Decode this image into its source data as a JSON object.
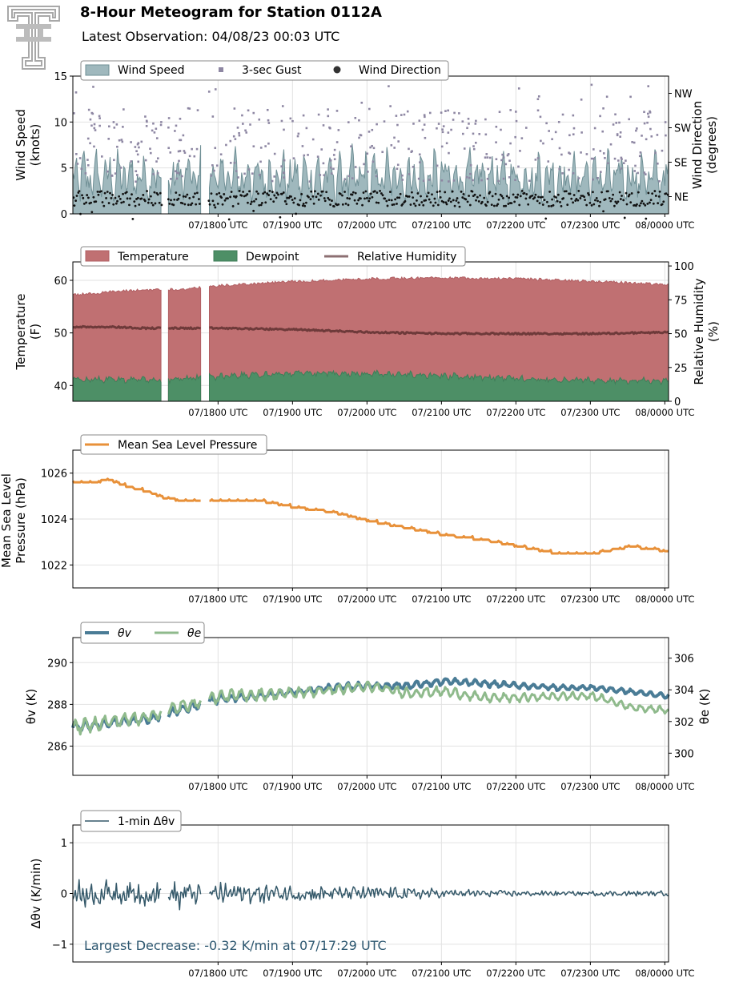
{
  "header": {
    "title": "8-Hour Meteogram for Station 0112A",
    "subtitle": "Latest Observation: 04/08/23 00:03 UTC"
  },
  "colors": {
    "wind_speed": "#9fb8bd",
    "wind_speed_edge": "#6f8f95",
    "gust": "#8e87a3",
    "wind_dir": "#111111",
    "temperature": "#c07072",
    "dewpoint": "#4d8f66",
    "rh": "#6e3a3a",
    "rh_legend": "#8c6f72",
    "mslp": "#e8913a",
    "theta_v": "#4a7c96",
    "theta_e": "#8fba8c",
    "dtheta": "#35596a",
    "annotation": "#2d5770",
    "logo": "#a8a8a8"
  },
  "chart_data": [
    {
      "type": "area",
      "id": "wind",
      "ylabel": "Wind Speed\n(knots)",
      "ylabel2": "Wind Direction\n(degrees)",
      "ylim": [
        0,
        15
      ],
      "yticks": [
        0,
        5,
        10,
        15
      ],
      "y2ticks": [
        "NE",
        "SE",
        "SW",
        "NW"
      ],
      "y2tick_degrees": [
        45,
        135,
        225,
        315
      ],
      "y2lim": [
        0,
        360
      ],
      "xticks": [
        "07/1800 UTC",
        "07/1900 UTC",
        "07/2000 UTC",
        "07/2100 UTC",
        "07/2200 UTC",
        "07/2300 UTC",
        "08/0000 UTC"
      ],
      "legend": [
        "Wind Speed",
        "3-sec Gust",
        "Wind Direction"
      ],
      "legend_placement": "top-left",
      "x_range": [
        "07/16:03 UTC",
        "08/00:03 UTC"
      ],
      "data_gaps": [
        [
          "07/17:15",
          "07/17:19"
        ],
        [
          "07/17:46",
          "07/17:49"
        ]
      ],
      "series": [
        {
          "name": "Wind Speed",
          "summary": "fluctuating 0 to 8 knots",
          "typical": [
            1,
            8
          ]
        },
        {
          "name": "3-sec Gust",
          "summary": "scatter 3 to 15 knots",
          "typical": [
            3,
            15
          ]
        },
        {
          "name": "Wind Direction",
          "summary": "mostly near NE, 0 to 120 degrees",
          "typical": [
            0,
            120
          ]
        }
      ],
      "grid": true
    },
    {
      "type": "area",
      "id": "thermo",
      "ylabel": "Temperature\n(F)",
      "ylabel2": "Relative Humidity\n(%)",
      "ylim": [
        37,
        63.5
      ],
      "yticks": [
        40,
        50,
        60
      ],
      "y2lim": [
        0,
        103
      ],
      "y2ticks": [
        0,
        25,
        50,
        75,
        100
      ],
      "xticks": [
        "07/1800 UTC",
        "07/1900 UTC",
        "07/2000 UTC",
        "07/2100 UTC",
        "07/2200 UTC",
        "07/2300 UTC",
        "08/0000 UTC"
      ],
      "legend": [
        "Temperature",
        "Dewpoint",
        "Relative Humidity"
      ],
      "legend_placement": "top-left",
      "series": [
        {
          "name": "Temperature",
          "x_hours": [
            0,
            0.5,
            1,
            1.5,
            2,
            3,
            4,
            5,
            6,
            7,
            8
          ],
          "values": [
            57.2,
            57.8,
            58.2,
            58.3,
            59.0,
            59.8,
            60.3,
            60.5,
            60.3,
            59.8,
            59.2
          ]
        },
        {
          "name": "Dewpoint",
          "x_hours": [
            0,
            0.5,
            1,
            1.5,
            2,
            3,
            4,
            5,
            6,
            7,
            8
          ],
          "values": [
            41.0,
            41.2,
            41.0,
            41.2,
            41.8,
            42.3,
            42.3,
            41.8,
            41.3,
            41.0,
            40.8
          ]
        },
        {
          "name": "Relative Humidity",
          "x_hours": [
            0,
            0.5,
            1,
            1.5,
            2,
            3,
            4,
            5,
            6,
            7,
            8
          ],
          "values": [
            55,
            55,
            54,
            54,
            54,
            53,
            51,
            50,
            50,
            50,
            51
          ]
        }
      ],
      "grid": true
    },
    {
      "type": "line",
      "id": "mslp",
      "ylabel": "Mean Sea Level\nPressure (hPa)",
      "ylim": [
        1021,
        1027
      ],
      "yticks": [
        1022,
        1024,
        1026
      ],
      "xticks": [
        "07/1800 UTC",
        "07/1900 UTC",
        "07/2000 UTC",
        "07/2100 UTC",
        "07/2200 UTC",
        "07/2300 UTC",
        "08/0000 UTC"
      ],
      "legend": [
        "Mean Sea Level Pressure"
      ],
      "legend_placement": "top-left",
      "series": [
        {
          "name": "Mean Sea Level Pressure",
          "x_hours": [
            0,
            0.25,
            0.5,
            0.75,
            1.0,
            1.25,
            1.5,
            2.0,
            2.5,
            3.0,
            3.5,
            4.0,
            4.5,
            5.0,
            5.5,
            6.0,
            6.5,
            7.0,
            7.5,
            8.0
          ],
          "values": [
            1025.6,
            1025.6,
            1025.7,
            1025.4,
            1025.2,
            1024.9,
            1024.8,
            1024.8,
            1024.8,
            1024.5,
            1024.3,
            1023.9,
            1023.6,
            1023.3,
            1023.1,
            1022.8,
            1022.5,
            1022.5,
            1022.8,
            1022.6
          ]
        }
      ],
      "grid": true
    },
    {
      "type": "line",
      "id": "theta",
      "ylabel": "θv (K)",
      "ylabel2": "θe (K)",
      "ylim": [
        284.6,
        291.2
      ],
      "yticks": [
        286,
        288,
        290
      ],
      "y2lim": [
        298.6,
        307.3
      ],
      "y2ticks": [
        300,
        302,
        304,
        306
      ],
      "xticks": [
        "07/1800 UTC",
        "07/1900 UTC",
        "07/2000 UTC",
        "07/2100 UTC",
        "07/2200 UTC",
        "07/2300 UTC",
        "08/0000 UTC"
      ],
      "legend": [
        "θv",
        "θe"
      ],
      "legend_placement": "top-left",
      "series": [
        {
          "name": "θv",
          "axis": "left",
          "x_hours": [
            0,
            0.5,
            1.0,
            1.5,
            2.0,
            2.5,
            3.0,
            3.5,
            4.0,
            4.5,
            5.0,
            5.5,
            6.0,
            6.5,
            7.0,
            7.5,
            8.0
          ],
          "values": [
            286.9,
            287.1,
            287.3,
            287.8,
            288.3,
            288.4,
            288.6,
            288.8,
            288.9,
            288.9,
            289.1,
            289.0,
            288.9,
            288.8,
            288.8,
            288.6,
            288.4
          ]
        },
        {
          "name": "θe",
          "axis": "right",
          "x_hours": [
            0,
            0.5,
            1.0,
            1.5,
            2.0,
            2.5,
            3.0,
            3.5,
            4.0,
            4.5,
            5.0,
            5.5,
            6.0,
            6.5,
            7.0,
            7.5,
            8.0
          ],
          "values": [
            301.6,
            302.0,
            302.3,
            303.0,
            303.6,
            303.7,
            303.8,
            304.0,
            304.2,
            303.8,
            303.9,
            303.5,
            303.5,
            303.6,
            303.6,
            302.9,
            302.7
          ]
        }
      ],
      "grid": true
    },
    {
      "type": "line",
      "id": "dtheta",
      "ylabel": "Δθv (K/min)",
      "ylim": [
        -1.35,
        1.35
      ],
      "yticks": [
        -1,
        0,
        1
      ],
      "xticks": [
        "07/1800 UTC",
        "07/1900 UTC",
        "07/2000 UTC",
        "07/2100 UTC",
        "07/2200 UTC",
        "07/2300 UTC",
        "08/0000 UTC"
      ],
      "legend": [
        "1-min Δθv"
      ],
      "legend_placement": "top-left",
      "series": [
        {
          "name": "1-min Δθv",
          "summary": "oscillating about 0, amplitude up to 0.3 decreasing to 0.05",
          "typical": [
            -0.32,
            0.32
          ]
        }
      ],
      "annotation": "Largest Decrease: -0.32 K/min at 07/17:29 UTC",
      "grid": true
    }
  ]
}
